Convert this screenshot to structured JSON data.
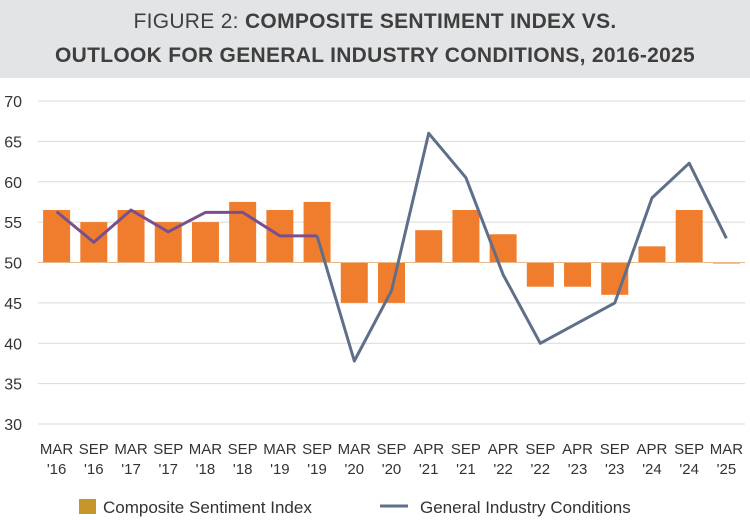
{
  "title": {
    "lead": "FIGURE 2:",
    "line1_bold": "COMPOSITE SENTIMENT INDEX VS.",
    "line2_bold": "OUTLOOK FOR GENERAL INDUSTRY CONDITIONS, 2016-2025"
  },
  "chart_data": {
    "type": "bar",
    "title": "FIGURE 2: COMPOSITE SENTIMENT INDEX VS. OUTLOOK FOR GENERAL INDUSTRY CONDITIONS, 2016-2025",
    "categories": [
      [
        "MAR",
        "'16"
      ],
      [
        "SEP",
        "'16"
      ],
      [
        "MAR",
        "'17"
      ],
      [
        "SEP",
        "'17"
      ],
      [
        "MAR",
        "'18"
      ],
      [
        "SEP",
        "'18"
      ],
      [
        "MAR",
        "'19"
      ],
      [
        "SEP",
        "'19"
      ],
      [
        "MAR",
        "'20"
      ],
      [
        "SEP",
        "'20"
      ],
      [
        "APR",
        "'21"
      ],
      [
        "SEP",
        "'21"
      ],
      [
        "APR",
        "'22"
      ],
      [
        "SEP",
        "'22"
      ],
      [
        "APR",
        "'23"
      ],
      [
        "SEP",
        "'23"
      ],
      [
        "APR",
        "'24"
      ],
      [
        "SEP",
        "'24"
      ],
      [
        "MAR",
        "'25"
      ]
    ],
    "baseline": 50,
    "ylim": [
      30,
      70
    ],
    "yticks": [
      30,
      35,
      40,
      45,
      50,
      55,
      60,
      65,
      70
    ],
    "grid": true,
    "legend_position": "bottom",
    "series": [
      {
        "name": "Composite Sentiment Index",
        "type": "bar",
        "color": "#ef7d2d",
        "legend_swatch_color": "#c8952c",
        "values": [
          56.5,
          55,
          56.5,
          55,
          55,
          57.5,
          56.5,
          57.5,
          45,
          45,
          54,
          56.5,
          53.5,
          47,
          47,
          46,
          52,
          56.5,
          50
        ]
      },
      {
        "name": "General Industry Conditions",
        "type": "line",
        "color": "#5f6f8a",
        "early_segment_color": "#7b4f8c",
        "values": [
          56.3,
          52.5,
          56.5,
          53.8,
          56.2,
          56.2,
          53.3,
          53.3,
          37.8,
          46.5,
          66,
          60.5,
          48.5,
          40,
          42.5,
          45,
          58,
          62.3,
          53
        ]
      }
    ]
  }
}
